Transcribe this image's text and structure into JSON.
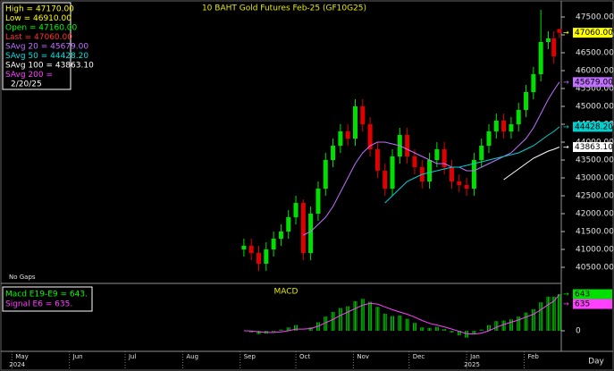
{
  "chart_data": [
    {
      "type": "candlestick",
      "title": "10  BAHT  Gold  Futures  Feb-25  (GF10G25)",
      "note": "No Gaps",
      "info": [
        {
          "text": "High    =  47170.00",
          "color": "#ffff00"
        },
        {
          "text": "Low     =  46910.00",
          "color": "#ffff00"
        },
        {
          "text": "Open    =  47160.00",
          "color": "#00ff00"
        },
        {
          "text": "Last    =  47060.00",
          "color": "#ff3030"
        },
        {
          "text": "SAvg  20  =  45679.00",
          "color": "#c070ff"
        },
        {
          "text": "SAvg  50  =  44428.20",
          "color": "#00e0e0"
        },
        {
          "text": "SAvg  100  =  43863.10",
          "color": "#ffffff"
        },
        {
          "text": "SAvg  200  =",
          "color": "#ff40ff"
        },
        {
          "text": "2/20/25",
          "color": "#ffffff"
        }
      ],
      "x": [
        125,
        129,
        133,
        137,
        141,
        145,
        149,
        153,
        157,
        161,
        165,
        169,
        173,
        177,
        181,
        185,
        189,
        193,
        197,
        201,
        205,
        209,
        213,
        217,
        221,
        225,
        229,
        233,
        237,
        241,
        245,
        249,
        253,
        257,
        261,
        265,
        269,
        273,
        277,
        281,
        285,
        289,
        292,
        295
      ],
      "open": [
        41000,
        41100,
        40900,
        40600,
        41000,
        41300,
        41500,
        41900,
        42300,
        40900,
        42000,
        42700,
        43500,
        43900,
        44300,
        44100,
        45000,
        44500,
        43800,
        43200,
        42700,
        43600,
        44200,
        43600,
        43300,
        42900,
        43500,
        43800,
        43300,
        42900,
        42800,
        42700,
        43500,
        43900,
        44300,
        44600,
        44300,
        44500,
        44900,
        45400,
        45900,
        46800,
        46900,
        47160
      ],
      "high": [
        41300,
        41300,
        41100,
        41200,
        41500,
        41700,
        42100,
        42500,
        42400,
        42200,
        42900,
        43700,
        44100,
        44500,
        44500,
        45200,
        45200,
        44700,
        44000,
        43400,
        43800,
        44400,
        44400,
        43800,
        43500,
        43700,
        44000,
        44000,
        43500,
        43100,
        43000,
        43700,
        44100,
        44500,
        44800,
        44800,
        44700,
        45100,
        45600,
        46100,
        47700,
        47100,
        47100,
        47170
      ],
      "low": [
        40800,
        40700,
        40400,
        40400,
        40800,
        41100,
        41300,
        41700,
        40700,
        40700,
        41800,
        42500,
        43300,
        43700,
        43900,
        43900,
        44300,
        43600,
        43000,
        42500,
        42500,
        43400,
        43400,
        43100,
        42700,
        42700,
        43300,
        43100,
        42700,
        42600,
        42500,
        42500,
        43300,
        43700,
        44100,
        44100,
        44100,
        44300,
        44700,
        45200,
        45700,
        46600,
        46200,
        46910
      ],
      "close": [
        41100,
        40900,
        40600,
        41000,
        41300,
        41500,
        41900,
        42300,
        40900,
        42000,
        42700,
        43500,
        43900,
        44300,
        44100,
        45000,
        44500,
        43800,
        43200,
        42700,
        43600,
        44200,
        43600,
        43300,
        42900,
        43500,
        43800,
        43300,
        42900,
        42800,
        42700,
        43500,
        43900,
        44300,
        44600,
        44300,
        44500,
        44900,
        45400,
        45900,
        46800,
        46900,
        46400,
        47060
      ],
      "up_color": "#00e000",
      "down_color": "#e00000",
      "last_label": "47060.00",
      "last_color": "#ffff00",
      "series": [
        {
          "color": "#c070ff",
          "last_label": "45679.00",
          "values": [
            null,
            null,
            null,
            null,
            null,
            null,
            null,
            null,
            41400,
            41500,
            41700,
            41900,
            42200,
            42600,
            43000,
            43400,
            43700,
            43900,
            44000,
            44000,
            43950,
            43900,
            43800,
            43700,
            43600,
            43500,
            43400,
            43400,
            43300,
            43300,
            43200,
            43200,
            43300,
            43400,
            43500,
            43600,
            43700,
            43900,
            44100,
            44400,
            44800,
            45200,
            45450,
            45679
          ]
        },
        {
          "color": "#00d0d0",
          "last_label": "44428.20",
          "values": [
            null,
            null,
            null,
            null,
            null,
            null,
            null,
            null,
            null,
            null,
            null,
            null,
            null,
            null,
            null,
            null,
            null,
            null,
            null,
            42300,
            42500,
            42700,
            42900,
            43000,
            43100,
            43150,
            43200,
            43250,
            43300,
            43300,
            43350,
            43400,
            43450,
            43500,
            43550,
            43600,
            43650,
            43700,
            43800,
            43900,
            44050,
            44200,
            44300,
            44428.2
          ]
        },
        {
          "color": "#ffffff",
          "last_label": "43863.10",
          "values": [
            null,
            null,
            null,
            null,
            null,
            null,
            null,
            null,
            null,
            null,
            null,
            null,
            null,
            null,
            null,
            null,
            null,
            null,
            null,
            null,
            null,
            null,
            null,
            null,
            null,
            null,
            null,
            null,
            null,
            null,
            null,
            null,
            null,
            null,
            null,
            42950,
            43100,
            43250,
            43400,
            43550,
            43650,
            43750,
            43800,
            43863.1
          ]
        }
      ],
      "xlim": [
        -4,
        296
      ],
      "ylim": [
        40100,
        47850
      ],
      "yticks": [
        {
          "value": 40500,
          "label": "40500.00"
        },
        {
          "value": 41000,
          "label": "41000.00"
        },
        {
          "value": 41500,
          "label": "41500.00"
        },
        {
          "value": 42000,
          "label": "42000.00"
        },
        {
          "value": 42500,
          "label": "42500.00"
        },
        {
          "value": 43000,
          "label": "43000.00"
        },
        {
          "value": 43500,
          "label": "43500.00"
        },
        {
          "value": 44000,
          "label": "44000.00"
        },
        {
          "value": 44500,
          "label": "44500.00"
        },
        {
          "value": 45000,
          "label": "45000.00"
        },
        {
          "value": 45500,
          "label": "45500.00"
        },
        {
          "value": 46000,
          "label": "46000.00"
        },
        {
          "value": 46500,
          "label": "46500.00"
        },
        {
          "value": 47000,
          "label": "47000.00"
        },
        {
          "value": 47500,
          "label": "47500.00"
        }
      ]
    },
    {
      "type": "macd",
      "title": "MACD",
      "info": [
        {
          "text": "Macd  E19-E9  =  643.",
          "color": "#00ff00"
        },
        {
          "text": "Signal  E6  =  635.",
          "color": "#ff40ff"
        }
      ],
      "histogram": {
        "color": "#00c000",
        "last_label": "643",
        "values": [
          0,
          -30,
          -60,
          -50,
          -20,
          20,
          60,
          100,
          0,
          60,
          150,
          250,
          330,
          400,
          430,
          520,
          560,
          510,
          420,
          300,
          260,
          270,
          210,
          140,
          60,
          50,
          70,
          30,
          -30,
          -80,
          -120,
          -60,
          20,
          100,
          170,
          180,
          200,
          250,
          320,
          380,
          500,
          600,
          600,
          643
        ]
      },
      "signal": {
        "color": "#ff40ff",
        "last_label": "635",
        "values": [
          0,
          -5,
          -20,
          -30,
          -30,
          -20,
          0,
          30,
          30,
          40,
          80,
          140,
          200,
          270,
          330,
          390,
          450,
          480,
          470,
          420,
          370,
          330,
          290,
          240,
          180,
          130,
          100,
          70,
          30,
          -10,
          -50,
          -60,
          -40,
          0,
          60,
          110,
          150,
          190,
          240,
          290,
          370,
          460,
          520,
          635
        ]
      },
      "xlim": [
        -4,
        296
      ],
      "ylim": [
        -345,
        785
      ],
      "yticks": [
        0
      ],
      "xticks": [
        {
          "value": 0,
          "label": "May"
        },
        {
          "value": 31,
          "label": "Jun"
        },
        {
          "value": 61,
          "label": "Jul"
        },
        {
          "value": 92,
          "label": "Aug"
        },
        {
          "value": 123,
          "label": "Sep"
        },
        {
          "value": 153,
          "label": "Oct"
        },
        {
          "value": 184,
          "label": "Nov"
        },
        {
          "value": 214,
          "label": "Dec"
        },
        {
          "value": 245,
          "label": "Jan"
        },
        {
          "value": 276,
          "label": "Feb"
        }
      ],
      "years": [
        {
          "value": 0,
          "label": "2024"
        },
        {
          "value": 245,
          "label": "2025"
        }
      ],
      "xlabel": "Day"
    }
  ]
}
